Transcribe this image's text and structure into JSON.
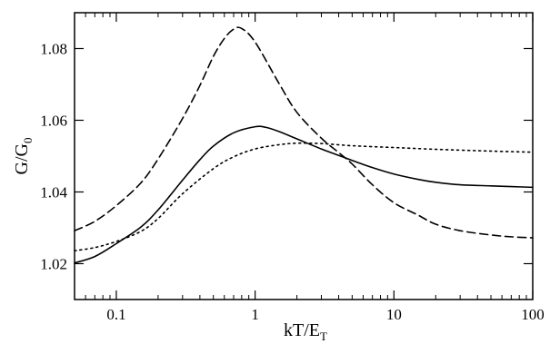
{
  "chart_data": {
    "type": "line",
    "xlabel": "kT/E",
    "xlabel_sub": "T",
    "ylabel": "G/G",
    "ylabel_sub": "0",
    "x_scale": "log",
    "xlim": [
      0.05,
      100
    ],
    "ylim": [
      1.01,
      1.09
    ],
    "x_ticks": [
      {
        "value": 0.1,
        "label": "0.1"
      },
      {
        "value": 1,
        "label": "1"
      },
      {
        "value": 10,
        "label": "10"
      },
      {
        "value": 100,
        "label": "100"
      }
    ],
    "y_ticks": [
      {
        "value": 1.02,
        "label": "1.02"
      },
      {
        "value": 1.04,
        "label": "1.04"
      },
      {
        "value": 1.06,
        "label": "1.06"
      },
      {
        "value": 1.08,
        "label": "1.08"
      }
    ],
    "grid": false,
    "series": [
      {
        "style": "dashed",
        "color": "#000000",
        "points": [
          [
            0.05,
            1.0292
          ],
          [
            0.07,
            1.0318
          ],
          [
            0.1,
            1.0362
          ],
          [
            0.15,
            1.0425
          ],
          [
            0.2,
            1.0492
          ],
          [
            0.3,
            1.0605
          ],
          [
            0.4,
            1.0697
          ],
          [
            0.5,
            1.0778
          ],
          [
            0.6,
            1.0828
          ],
          [
            0.7,
            1.0854
          ],
          [
            0.8,
            1.0856
          ],
          [
            1.0,
            1.0818
          ],
          [
            1.5,
            1.07
          ],
          [
            2.0,
            1.0622
          ],
          [
            3.0,
            1.055
          ],
          [
            4.0,
            1.051
          ],
          [
            5.0,
            1.0478
          ],
          [
            7.0,
            1.042
          ],
          [
            10.0,
            1.037
          ],
          [
            15.0,
            1.0335
          ],
          [
            20.0,
            1.031
          ],
          [
            30.0,
            1.0292
          ],
          [
            50.0,
            1.028
          ],
          [
            70.0,
            1.0275
          ],
          [
            100.0,
            1.0272
          ]
        ]
      },
      {
        "style": "solid",
        "color": "#000000",
        "points": [
          [
            0.05,
            1.0202
          ],
          [
            0.07,
            1.022
          ],
          [
            0.1,
            1.0256
          ],
          [
            0.15,
            1.0302
          ],
          [
            0.2,
            1.035
          ],
          [
            0.3,
            1.0433
          ],
          [
            0.4,
            1.049
          ],
          [
            0.5,
            1.0528
          ],
          [
            0.7,
            1.0565
          ],
          [
            1.0,
            1.0582
          ],
          [
            1.2,
            1.058
          ],
          [
            1.5,
            1.0568
          ],
          [
            2.0,
            1.0548
          ],
          [
            3.0,
            1.052
          ],
          [
            4.0,
            1.0502
          ],
          [
            5.0,
            1.0488
          ],
          [
            7.0,
            1.0468
          ],
          [
            10.0,
            1.045
          ],
          [
            15.0,
            1.0435
          ],
          [
            20.0,
            1.0427
          ],
          [
            30.0,
            1.042
          ],
          [
            50.0,
            1.0417
          ],
          [
            70.0,
            1.0415
          ],
          [
            100.0,
            1.0413
          ]
        ]
      },
      {
        "style": "dotted",
        "color": "#000000",
        "points": [
          [
            0.05,
            1.0236
          ],
          [
            0.07,
            1.0245
          ],
          [
            0.1,
            1.0262
          ],
          [
            0.15,
            1.029
          ],
          [
            0.2,
            1.0326
          ],
          [
            0.3,
            1.0395
          ],
          [
            0.5,
            1.0465
          ],
          [
            0.7,
            1.0498
          ],
          [
            1.0,
            1.052
          ],
          [
            1.5,
            1.0532
          ],
          [
            2.0,
            1.0536
          ],
          [
            3.0,
            1.0535
          ],
          [
            5.0,
            1.0529
          ],
          [
            10.0,
            1.0524
          ],
          [
            20.0,
            1.0519
          ],
          [
            50.0,
            1.0514
          ],
          [
            100.0,
            1.0511
          ]
        ]
      }
    ]
  }
}
